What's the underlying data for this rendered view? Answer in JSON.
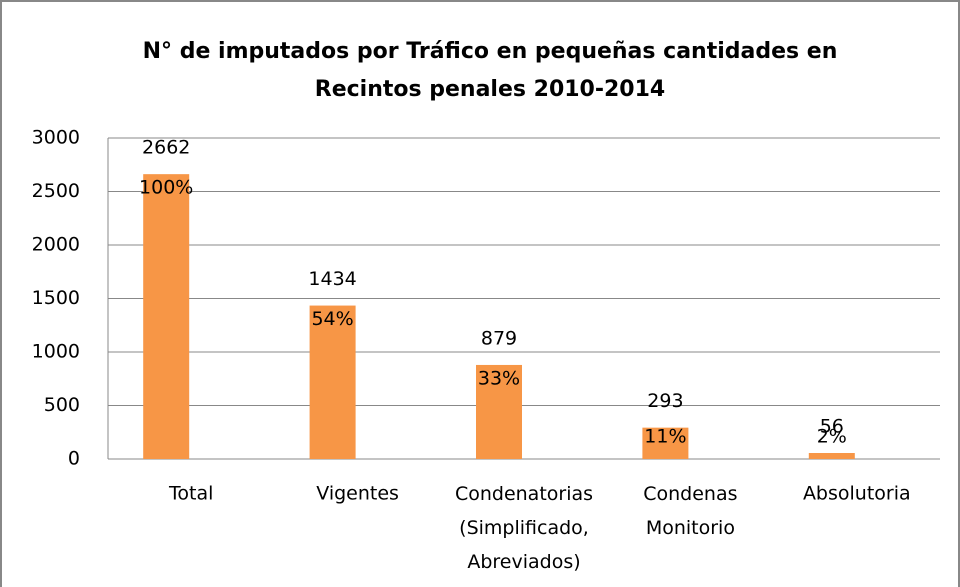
{
  "chart_data": {
    "type": "bar",
    "title": [
      "N° de imputados por Tráfico en pequeñas cantidades en",
      "Recintos penales 2010-2014"
    ],
    "categories": [
      "Total",
      "Vigentes",
      "Condenatorias (Simplificado, Abreviados)",
      "Condenas Monitorio",
      "Absolutoria"
    ],
    "values": [
      2662,
      1434,
      879,
      293,
      56
    ],
    "annotations": [
      "100%",
      "54%",
      "33%",
      "11%",
      "2%"
    ],
    "color": "#f79646",
    "ylim": [
      0,
      3000
    ],
    "yticks": [
      0,
      500,
      1000,
      1500,
      2000,
      2500,
      3000
    ],
    "grid": true
  }
}
